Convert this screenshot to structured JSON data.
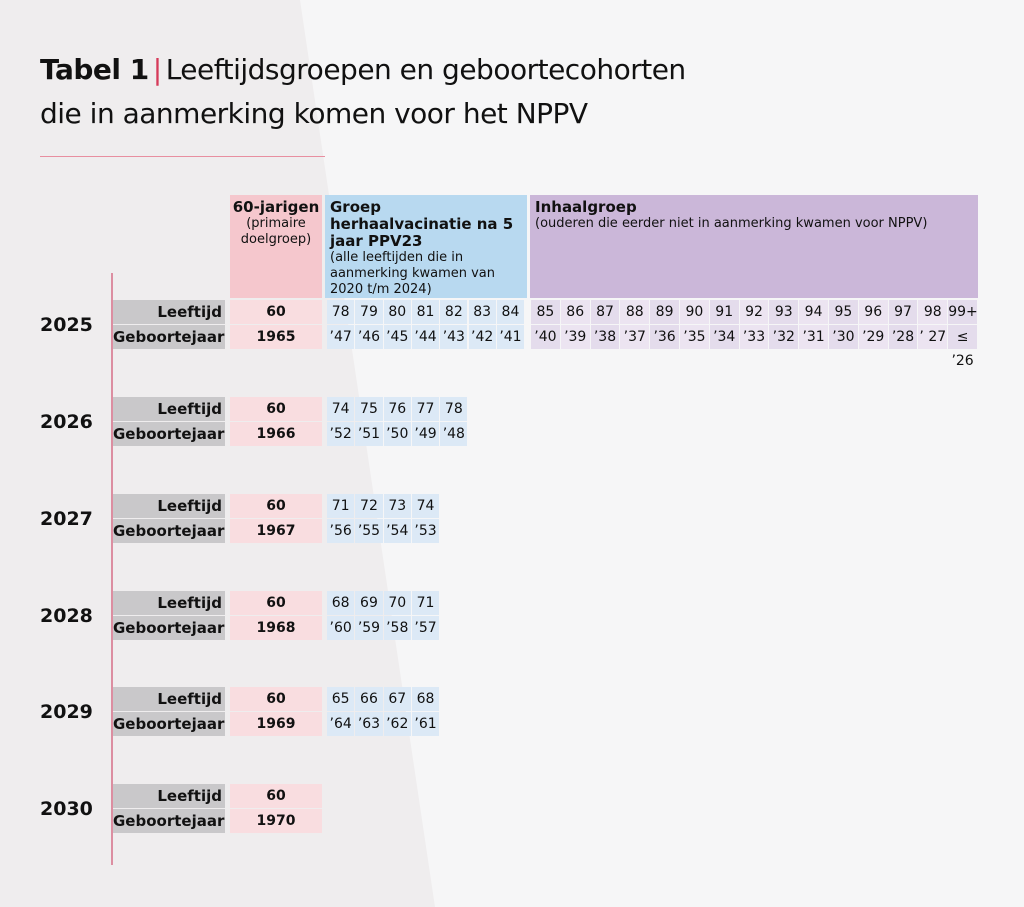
{
  "title": {
    "bold": "Tabel 1",
    "separator": "|",
    "line1": "Leeftijdsgroepen en geboortecohorten",
    "line2": "die in aanmerking komen voor het NPPV"
  },
  "headers": {
    "primary": {
      "title": "60-jarigen",
      "sub": "(primaire doelgroep)"
    },
    "revaccination": {
      "title": "Groep herhaalvacinatie na 5 jaar PPV23",
      "sub": "(alle leeftijden die in aanmerking kwamen van 2020 t/m 2024)"
    },
    "catchup": {
      "title": "Inhaalgroep",
      "sub": "(ouderen die eerder niet in aanmerking kwamen voor NPPV)"
    }
  },
  "row_labels": {
    "age": "Leeftijd",
    "birth": "Geboortejaar"
  },
  "years": [
    {
      "year": "2025",
      "primary_age": "60",
      "primary_birth": "1965",
      "rev_ages": [
        "78",
        "79",
        "80",
        "81",
        "82",
        "83",
        "84"
      ],
      "rev_births": [
        "’47",
        "’46",
        "’45",
        "’44",
        "’43",
        "’42",
        "’41"
      ],
      "catch_ages": [
        "85",
        "86",
        "87",
        "88",
        "89",
        "90",
        "91",
        "92",
        "93",
        "94",
        "95",
        "96",
        "97",
        "98",
        "99+"
      ],
      "catch_births": [
        "’40",
        "’39",
        "’38",
        "’37",
        "’36",
        "’35",
        "’34",
        "’33",
        "’32",
        "’31",
        "’30",
        "’29",
        "’28",
        "’ 27",
        "≤ ’26"
      ]
    },
    {
      "year": "2026",
      "primary_age": "60",
      "primary_birth": "1966",
      "rev_ages": [
        "74",
        "75",
        "76",
        "77",
        "78"
      ],
      "rev_births": [
        "’52",
        "’51",
        "’50",
        "’49",
        "’48"
      ],
      "catch_ages": [],
      "catch_births": []
    },
    {
      "year": "2027",
      "primary_age": "60",
      "primary_birth": "1967",
      "rev_ages": [
        "71",
        "72",
        "73",
        "74"
      ],
      "rev_births": [
        "’56",
        "’55",
        "’54",
        "’53"
      ],
      "catch_ages": [],
      "catch_births": []
    },
    {
      "year": "2028",
      "primary_age": "60",
      "primary_birth": "1968",
      "rev_ages": [
        "68",
        "69",
        "70",
        "71"
      ],
      "rev_births": [
        "’60",
        "’59",
        "’58",
        "’57"
      ],
      "catch_ages": [],
      "catch_births": []
    },
    {
      "year": "2029",
      "primary_age": "60",
      "primary_birth": "1969",
      "rev_ages": [
        "65",
        "66",
        "67",
        "68"
      ],
      "rev_births": [
        "’64",
        "’63",
        "’62",
        "’61"
      ],
      "catch_ages": [],
      "catch_births": []
    },
    {
      "year": "2030",
      "primary_age": "60",
      "primary_birth": "1970",
      "rev_ages": [],
      "rev_births": [],
      "catch_ages": [],
      "catch_births": []
    }
  ],
  "colors": {
    "accent": "#d63a5a",
    "primary_header": "#f5c7cd",
    "rev_header": "#b8d9f0",
    "catch_header": "#cbb7d9",
    "label_bg": "#c9c8ca"
  }
}
